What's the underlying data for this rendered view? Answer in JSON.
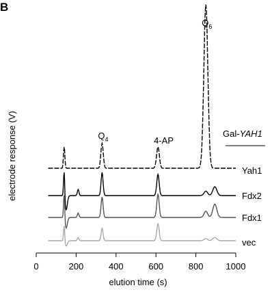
{
  "panel_label": "B",
  "chart_data": {
    "type": "line",
    "xlabel": "elution time (s)",
    "ylabel": "electrode response (V)",
    "xlim": [
      0,
      1000
    ],
    "xticks": [
      0,
      200,
      400,
      600,
      800,
      1000
    ],
    "grid": false,
    "group_label": {
      "prefix": "Gal-",
      "italic": "YAH1"
    },
    "peak_labels": [
      {
        "name": "Q",
        "sub": "4",
        "x": 330
      },
      {
        "name": "4-AP",
        "sub": "",
        "x": 610
      },
      {
        "name": "Q",
        "sub": "6",
        "x": 850
      }
    ],
    "series": [
      {
        "name": "Yah1",
        "style": "dashed",
        "color": "#000000",
        "baseline": 0,
        "drift": [
          0,
          120,
          60,
          0,
          40,
          50,
          10,
          0
        ],
        "peaks": [
          [
            140,
            1.2,
            3.5
          ],
          [
            330,
            1.4,
            6
          ],
          [
            610,
            1.2,
            7
          ],
          [
            850,
            9.2,
            10
          ]
        ]
      },
      {
        "name": "Fdx2",
        "style": "solid",
        "color": "#000000",
        "baseline": 0,
        "peaks": [
          [
            140,
            1.5,
            3
          ],
          [
            150,
            -0.8,
            6
          ],
          [
            210,
            0.35,
            4
          ],
          [
            330,
            1.3,
            5
          ],
          [
            610,
            1.2,
            6
          ],
          [
            850,
            0.25,
            9
          ],
          [
            895,
            0.5,
            10
          ]
        ]
      },
      {
        "name": "Fdx1",
        "style": "solid",
        "color": "#555555",
        "baseline": 0,
        "peaks": [
          [
            140,
            1.4,
            3
          ],
          [
            150,
            -0.6,
            6
          ],
          [
            210,
            0.25,
            4
          ],
          [
            330,
            1.15,
            5
          ],
          [
            610,
            1.3,
            6
          ],
          [
            850,
            0.35,
            9
          ],
          [
            895,
            0.75,
            10
          ]
        ]
      },
      {
        "name": "vec",
        "style": "solid",
        "color": "#aaaaaa",
        "baseline": 0,
        "peaks": [
          [
            140,
            0.9,
            3
          ],
          [
            150,
            -0.3,
            6
          ],
          [
            210,
            0.18,
            4
          ],
          [
            330,
            0.7,
            5
          ],
          [
            610,
            0.95,
            6
          ],
          [
            850,
            0.12,
            9
          ],
          [
            895,
            0.18,
            10
          ]
        ]
      }
    ]
  }
}
